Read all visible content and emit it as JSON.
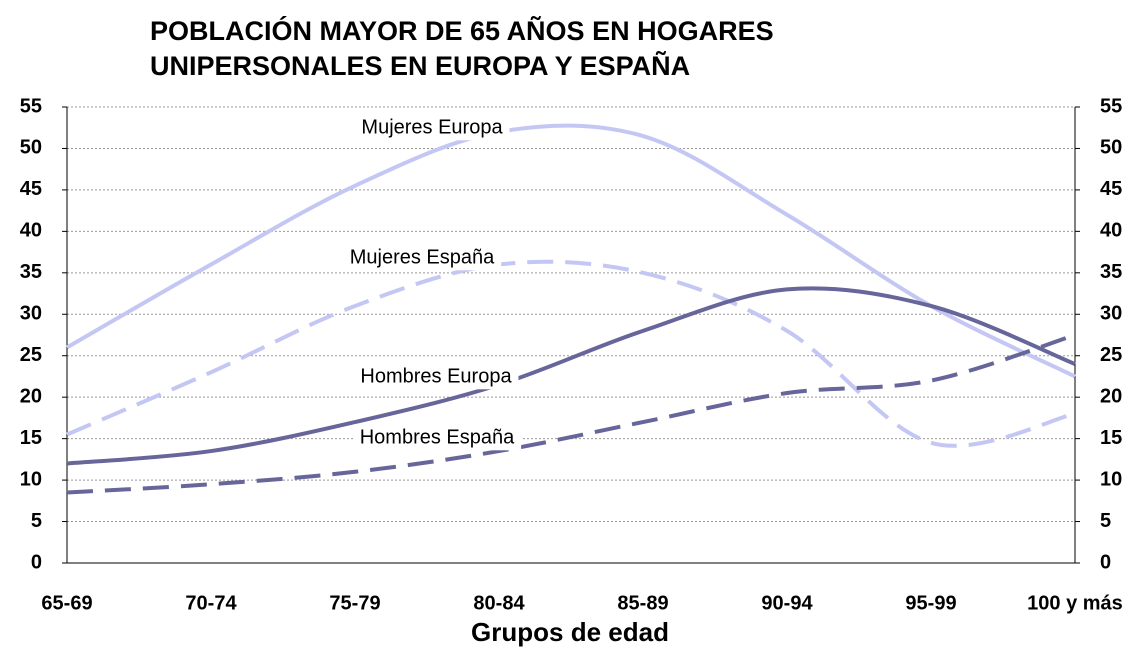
{
  "chart_data": {
    "type": "line",
    "title": [
      "POBLACIÓN MAYOR DE 65 AÑOS EN HOGARES",
      "UNIPERSONALES EN EUROPA Y ESPAÑA"
    ],
    "x_label": "Grupos de edad",
    "categories": [
      "65-69",
      "70-74",
      "75-79",
      "80-84",
      "85-89",
      "90-94",
      "95-99",
      "100 y más"
    ],
    "series": [
      {
        "name": "Mujeres Europa",
        "color": "#c4c6f4",
        "dashed": false,
        "values": [
          26,
          36,
          45.5,
          52,
          51.5,
          42,
          31,
          22.5
        ]
      },
      {
        "name": "Mujeres España",
        "color": "#c4c6f4",
        "dashed": true,
        "values": [
          15.5,
          23,
          31,
          36,
          35,
          28,
          14.5,
          18
        ]
      },
      {
        "name": "Hombres Europa",
        "color": "#66669a",
        "dashed": false,
        "values": [
          12,
          13.5,
          17,
          21.5,
          28,
          33,
          31,
          24
        ]
      },
      {
        "name": "Hombres España",
        "color": "#66669a",
        "dashed": true,
        "values": [
          8.5,
          9.5,
          11,
          13.5,
          17,
          20.5,
          22,
          27.5
        ]
      }
    ],
    "ylim": [
      0,
      55
    ],
    "yticks": [
      0,
      5,
      10,
      15,
      20,
      25,
      30,
      35,
      40,
      45,
      50,
      55
    ],
    "y2lim": [
      0,
      55
    ],
    "y2ticks": [
      0,
      5,
      10,
      15,
      20,
      25,
      30,
      35,
      40,
      45,
      50,
      55
    ],
    "grid": true
  }
}
